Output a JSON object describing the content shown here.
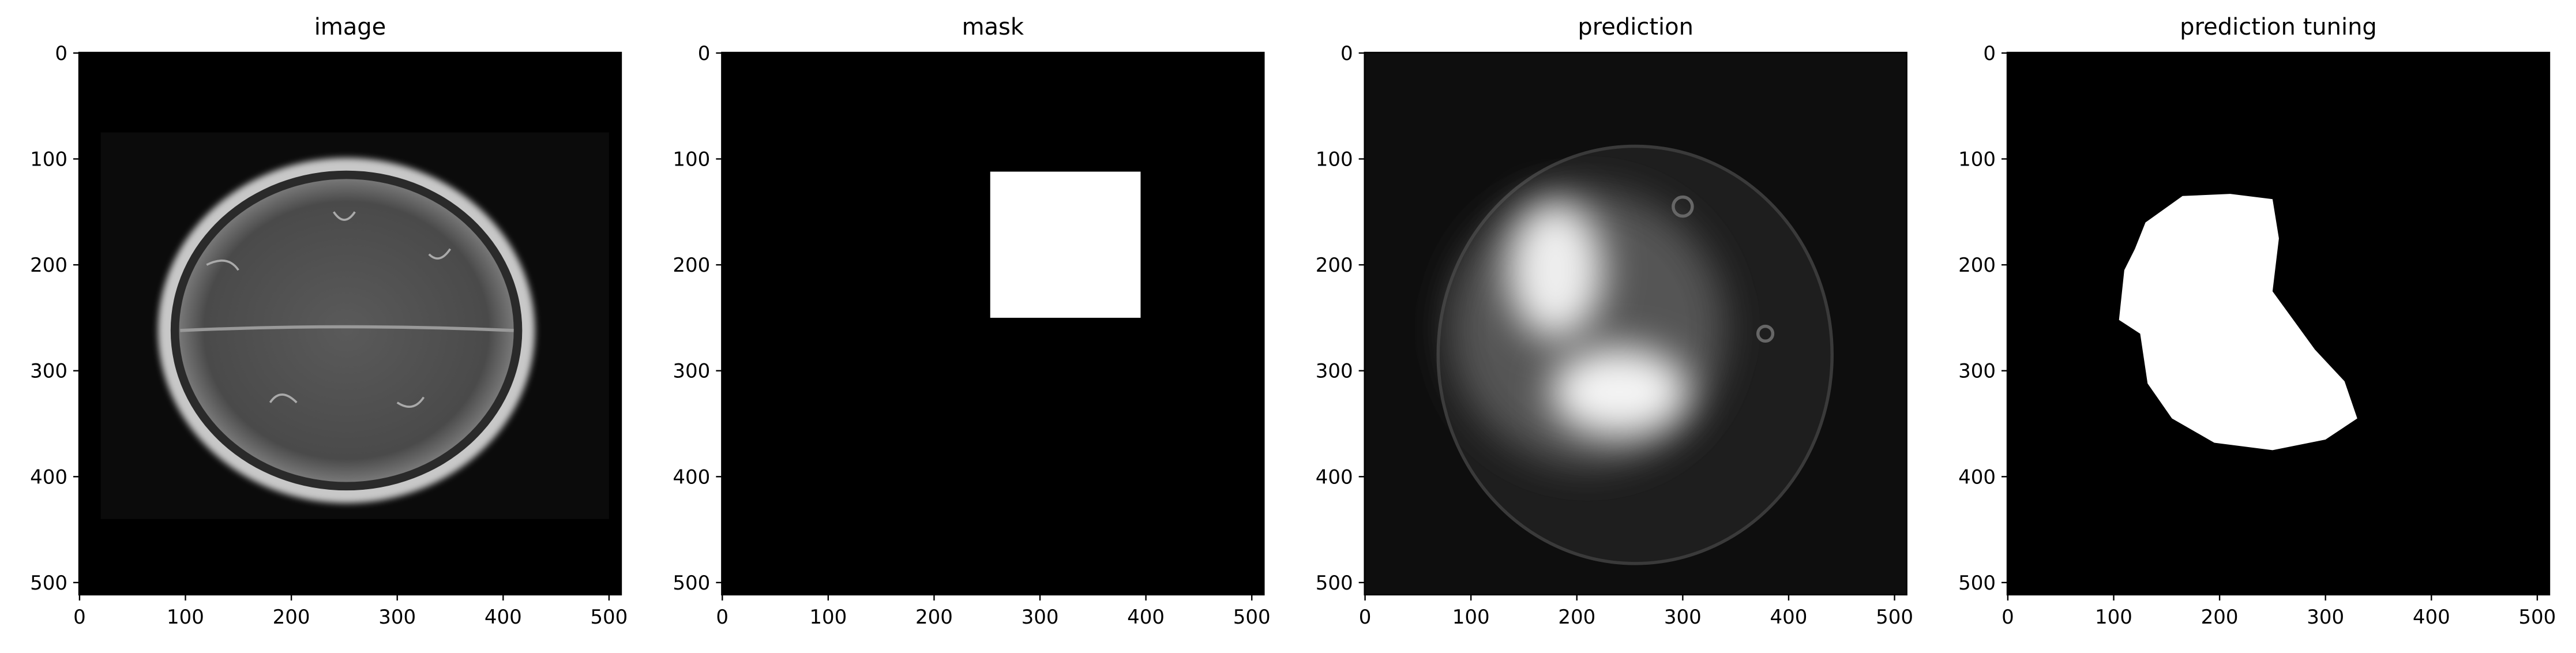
{
  "chart_data": [
    {
      "type": "image",
      "title": "image",
      "xlim": [
        -0.5,
        511.5
      ],
      "ylim": [
        511.5,
        -0.5
      ],
      "xticks": [
        0,
        100,
        200,
        300,
        400,
        500
      ],
      "yticks": [
        0,
        100,
        200,
        300,
        400,
        500
      ]
    },
    {
      "type": "image",
      "title": "mask",
      "xlim": [
        -0.5,
        511.5
      ],
      "ylim": [
        511.5,
        -0.5
      ],
      "xticks": [
        0,
        100,
        200,
        300,
        400,
        500
      ],
      "yticks": [
        0,
        100,
        200,
        300,
        400,
        500
      ]
    },
    {
      "type": "image",
      "title": "prediction",
      "xlim": [
        -0.5,
        511.5
      ],
      "ylim": [
        511.5,
        -0.5
      ],
      "xticks": [
        0,
        100,
        200,
        300,
        400,
        500
      ],
      "yticks": [
        0,
        100,
        200,
        300,
        400,
        500
      ]
    },
    {
      "type": "image",
      "title": "prediction tuning",
      "xlim": [
        -0.5,
        511.5
      ],
      "ylim": [
        511.5,
        -0.5
      ],
      "xticks": [
        0,
        100,
        200,
        300,
        400,
        500
      ],
      "yticks": [
        0,
        100,
        200,
        300,
        400,
        500
      ]
    }
  ]
}
